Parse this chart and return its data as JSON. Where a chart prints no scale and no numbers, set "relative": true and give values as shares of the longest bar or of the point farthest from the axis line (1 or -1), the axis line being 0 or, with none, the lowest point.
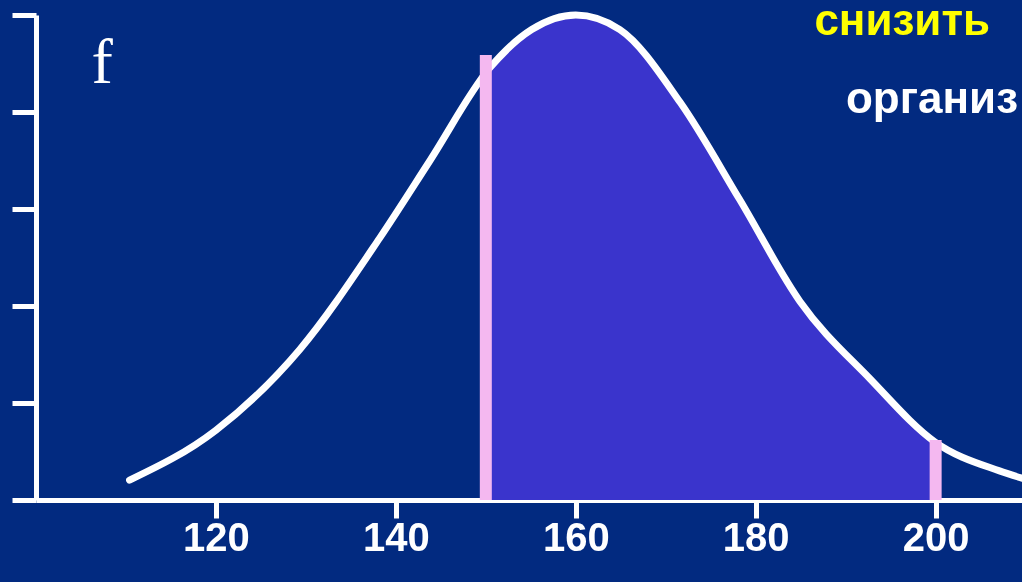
{
  "chart_data": {
    "type": "line",
    "ylabel": "f",
    "relative": true,
    "xlim": [
      100,
      209.6
    ],
    "xticks": [
      120,
      140,
      160,
      180,
      200
    ],
    "series": [
      {
        "type": "area",
        "color": "#3a34cc",
        "x": [
          150.4,
          155.1,
          160,
          164.9,
          171.6,
          178.2,
          184.9,
          192.7,
          199.9
        ],
        "values": [
          0.89,
          0.97,
          1,
          0.97,
          0.82,
          0.62,
          0.41,
          0.25,
          0.12
        ]
      },
      {
        "color": "#ffffff",
        "x": [
          110.4,
          120,
          129.3,
          138.2,
          143.8,
          150.4,
          155.1,
          160,
          164.9,
          171.6,
          178.2,
          184.9,
          192.7,
          199.9,
          207.1,
          209.6
        ],
        "values": [
          0.041,
          0.144,
          0.31,
          0.54,
          0.7,
          0.89,
          0.97,
          1,
          0.97,
          0.82,
          0.62,
          0.41,
          0.25,
          0.12,
          0.06,
          0.045
        ]
      }
    ],
    "ref_lines": [
      {
        "axis": "x",
        "value": 150,
        "color": "#f4b8f0"
      },
      {
        "axis": "x",
        "value": 200,
        "color": "#f4b8f0"
      }
    ],
    "annotations": [
      "снизить",
      "организ"
    ]
  }
}
